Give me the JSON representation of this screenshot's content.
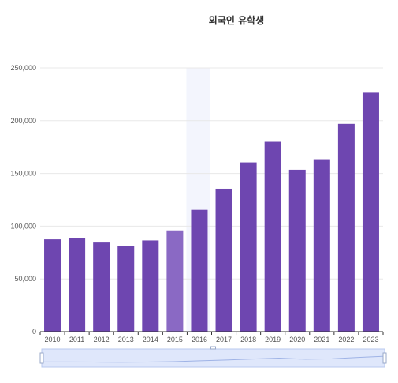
{
  "chart_data": {
    "type": "bar",
    "title": "외국인 유학생",
    "categories": [
      "2010",
      "2011",
      "2012",
      "2013",
      "2014",
      "2015",
      "2016",
      "2017",
      "2018",
      "2019",
      "2020",
      "2021",
      "2022",
      "2023"
    ],
    "values": [
      87500,
      88500,
      84500,
      81500,
      86500,
      96000,
      115500,
      135500,
      160500,
      180000,
      153500,
      163500,
      197000,
      226500
    ],
    "y_ticks": [
      "0",
      "50,000",
      "100,000",
      "150,000",
      "200,000",
      "250,000"
    ],
    "ylim": [
      0,
      250000
    ],
    "highlighted_category": "2015",
    "grid": true,
    "zoom_slider": true,
    "colors": {
      "bar": "#6e46b0",
      "bar_highlight": "#8a69c4",
      "highlight_band": "#f3f5fd",
      "grid": "#e8e8e8",
      "axis": "#333333",
      "label": "#555555",
      "slider_fill": "#dfe7fb",
      "slider_border": "#b8c9ef"
    }
  }
}
